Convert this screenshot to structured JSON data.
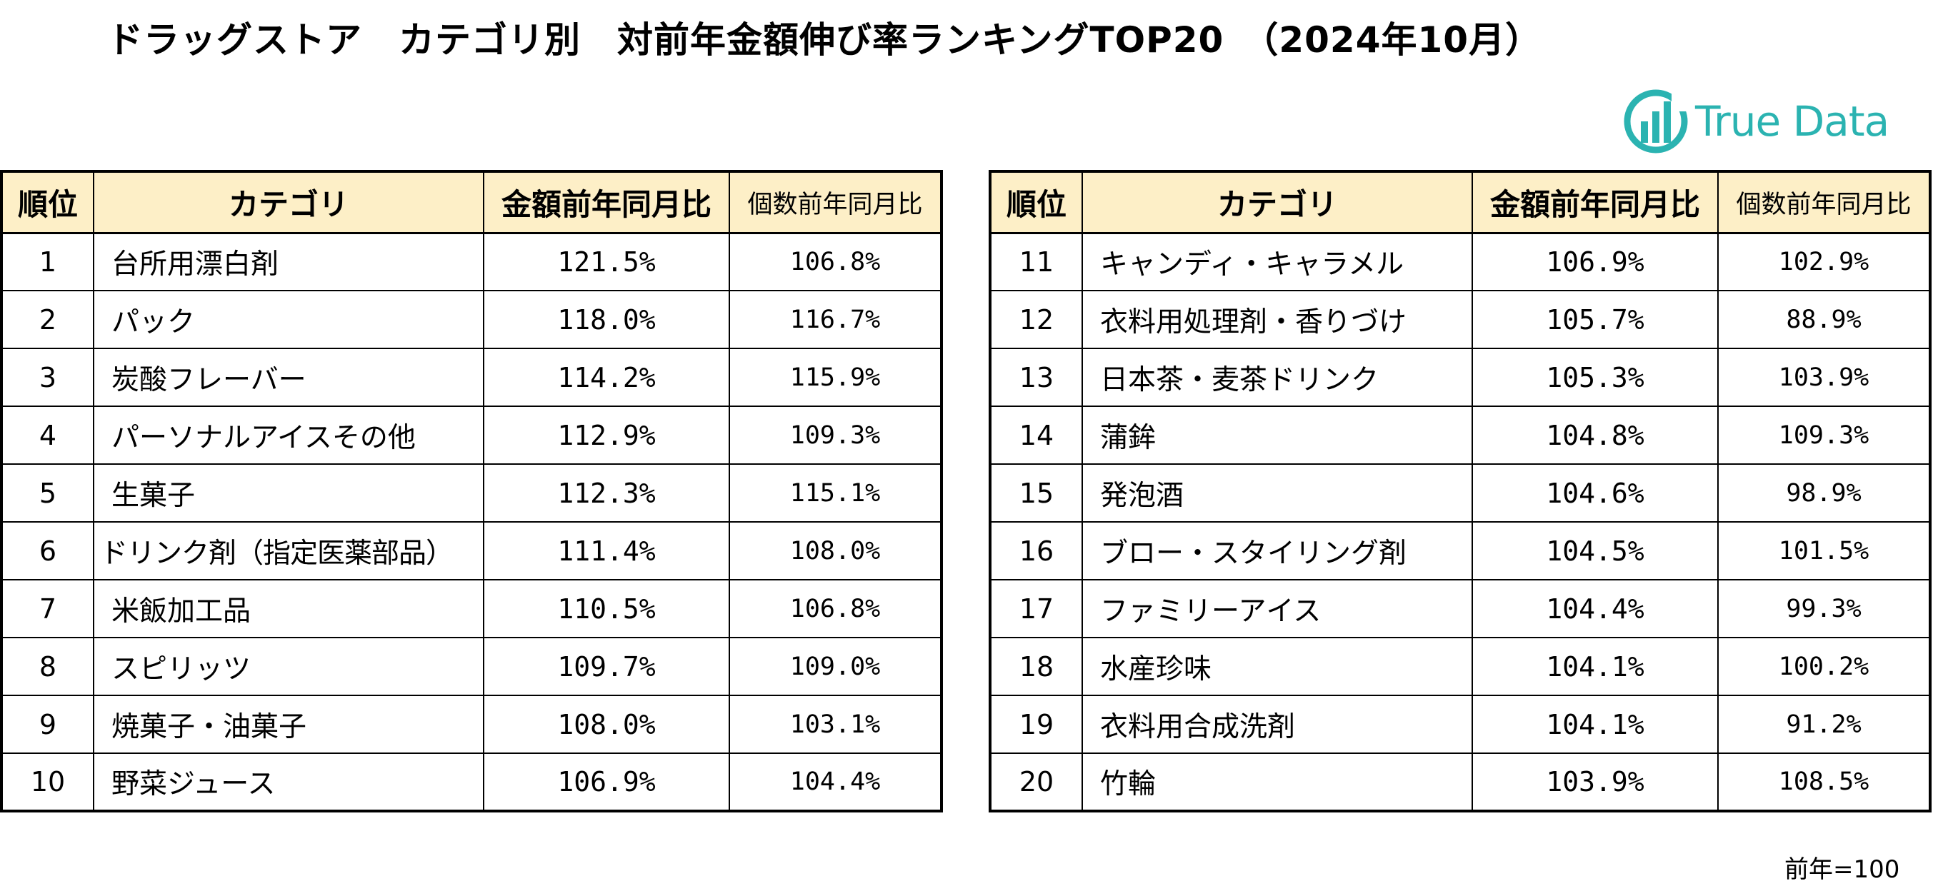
{
  "title": "ドラッグストア　カテゴリ別　対前年金額伸び率ランキングTOP20　（2024年10月）",
  "logo": {
    "text": "True Data",
    "icon": "truedata-bar-chart-logo-icon",
    "color": "#2bb3b1"
  },
  "headers": {
    "rank": "順位",
    "category": "カテゴリ",
    "amount_yoy": "金額前年同月比",
    "count_yoy": "個数前年同月比"
  },
  "header_bg": "#fdefc7",
  "left_rows": [
    {
      "rank": "1",
      "category": "台所用漂白剤",
      "amount": "121.5%",
      "count": "106.8%"
    },
    {
      "rank": "2",
      "category": "パック",
      "amount": "118.0%",
      "count": "116.7%"
    },
    {
      "rank": "3",
      "category": "炭酸フレーバー",
      "amount": "114.2%",
      "count": "115.9%"
    },
    {
      "rank": "4",
      "category": "パーソナルアイスその他",
      "amount": "112.9%",
      "count": "109.3%"
    },
    {
      "rank": "5",
      "category": "生菓子",
      "amount": "112.3%",
      "count": "115.1%"
    },
    {
      "rank": "6",
      "category": "ドリンク剤（指定医薬部品）",
      "amount": "111.4%",
      "count": "108.0%"
    },
    {
      "rank": "7",
      "category": "米飯加工品",
      "amount": "110.5%",
      "count": "106.8%"
    },
    {
      "rank": "8",
      "category": "スピリッツ",
      "amount": "109.7%",
      "count": "109.0%"
    },
    {
      "rank": "9",
      "category": "焼菓子・油菓子",
      "amount": "108.0%",
      "count": "103.1%"
    },
    {
      "rank": "10",
      "category": "野菜ジュース",
      "amount": "106.9%",
      "count": "104.4%"
    }
  ],
  "right_rows": [
    {
      "rank": "11",
      "category": "キャンディ・キャラメル",
      "amount": "106.9%",
      "count": "102.9%"
    },
    {
      "rank": "12",
      "category": "衣料用処理剤・香りづけ",
      "amount": "105.7%",
      "count": "88.9%"
    },
    {
      "rank": "13",
      "category": "日本茶・麦茶ドリンク",
      "amount": "105.3%",
      "count": "103.9%"
    },
    {
      "rank": "14",
      "category": "蒲鉾",
      "amount": "104.8%",
      "count": "109.3%"
    },
    {
      "rank": "15",
      "category": "発泡酒",
      "amount": "104.6%",
      "count": "98.9%"
    },
    {
      "rank": "16",
      "category": "ブロー・スタイリング剤",
      "amount": "104.5%",
      "count": "101.5%"
    },
    {
      "rank": "17",
      "category": "ファミリーアイス",
      "amount": "104.4%",
      "count": "99.3%"
    },
    {
      "rank": "18",
      "category": "水産珍味",
      "amount": "104.1%",
      "count": "100.2%"
    },
    {
      "rank": "19",
      "category": "衣料用合成洗剤",
      "amount": "104.1%",
      "count": "91.2%"
    },
    {
      "rank": "20",
      "category": "竹輪",
      "amount": "103.9%",
      "count": "108.5%"
    }
  ],
  "note": "前年=100"
}
